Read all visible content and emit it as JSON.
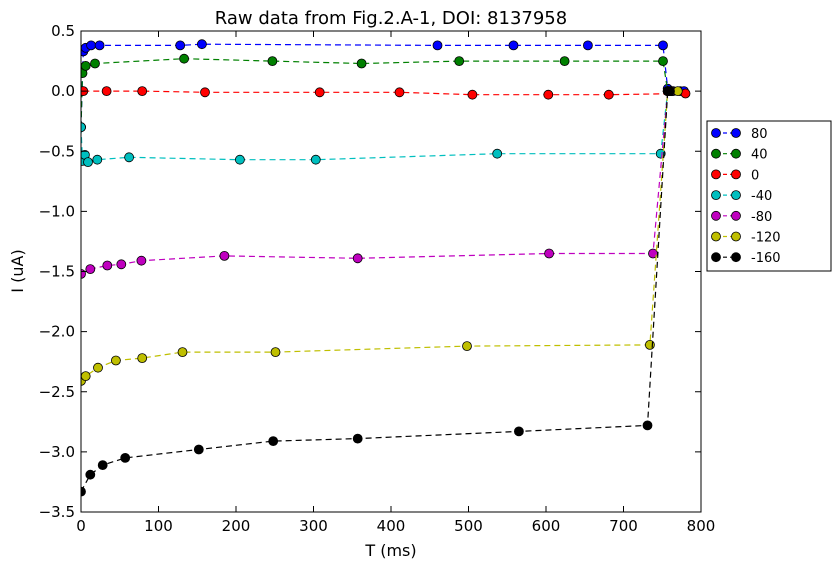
{
  "chart_data": {
    "type": "line",
    "title": "Raw data from Fig.2.A-1, DOI: 8137958",
    "xlabel": "T (ms)",
    "ylabel": "I (uA)",
    "xlim": [
      0,
      800
    ],
    "ylim": [
      -3.5,
      0.5
    ],
    "x_ticks": [
      0,
      100,
      200,
      300,
      400,
      500,
      600,
      700,
      800
    ],
    "y_ticks": [
      0.5,
      0.0,
      -0.5,
      -1.0,
      -1.5,
      -2.0,
      -2.5,
      -3.0,
      -3.5
    ],
    "x_tick_labels": [
      "0",
      "100",
      "200",
      "300",
      "400",
      "500",
      "600",
      "700",
      "800"
    ],
    "y_tick_labels": [
      "0.5",
      "0.0",
      "−0.5",
      "−1.0",
      "−1.5",
      "−2.0",
      "−2.5",
      "−3.0",
      "−3.5"
    ],
    "grid": false,
    "legend_placement": "outside-right",
    "line_style": "dashed",
    "series": [
      {
        "name": "80",
        "color": "#0000ff",
        "points": [
          [
            0,
            -0.3
          ],
          [
            3,
            0.33
          ],
          [
            6,
            0.36
          ],
          [
            13,
            0.38
          ],
          [
            24,
            0.38
          ],
          [
            128,
            0.38
          ],
          [
            156,
            0.39
          ],
          [
            460,
            0.38
          ],
          [
            558,
            0.38
          ],
          [
            654,
            0.38
          ],
          [
            751,
            0.38
          ],
          [
            757,
            0.02
          ],
          [
            761,
            0.0
          ],
          [
            773,
            0.0
          ],
          [
            778,
            0.0
          ]
        ]
      },
      {
        "name": "40",
        "color": "#008000",
        "points": [
          [
            0,
            -0.3
          ],
          [
            2,
            0.15
          ],
          [
            6,
            0.21
          ],
          [
            18,
            0.23
          ],
          [
            133,
            0.27
          ],
          [
            247,
            0.25
          ],
          [
            362,
            0.23
          ],
          [
            488,
            0.25
          ],
          [
            624,
            0.25
          ],
          [
            751,
            0.25
          ],
          [
            757,
            0.0
          ],
          [
            762,
            0.0
          ]
        ]
      },
      {
        "name": "0",
        "color": "#ff0000",
        "points": [
          [
            3,
            0.0
          ],
          [
            33,
            0.0
          ],
          [
            79,
            0.0
          ],
          [
            160,
            -0.01
          ],
          [
            308,
            -0.01
          ],
          [
            411,
            -0.01
          ],
          [
            505,
            -0.03
          ],
          [
            603,
            -0.03
          ],
          [
            681,
            -0.03
          ],
          [
            780,
            -0.02
          ]
        ]
      },
      {
        "name": "-40",
        "color": "#00bfbf",
        "points": [
          [
            0,
            -0.3
          ],
          [
            2,
            -0.58
          ],
          [
            5,
            -0.53
          ],
          [
            9,
            -0.59
          ],
          [
            21,
            -0.57
          ],
          [
            62,
            -0.55
          ],
          [
            205,
            -0.57
          ],
          [
            303,
            -0.57
          ],
          [
            537,
            -0.52
          ],
          [
            748,
            -0.52
          ],
          [
            757,
            0.0
          ],
          [
            764,
            0.0
          ]
        ]
      },
      {
        "name": "-80",
        "color": "#bf00bf",
        "points": [
          [
            0,
            -1.52
          ],
          [
            12,
            -1.48
          ],
          [
            34,
            -1.45
          ],
          [
            52,
            -1.44
          ],
          [
            78,
            -1.41
          ],
          [
            185,
            -1.37
          ],
          [
            357,
            -1.39
          ],
          [
            604,
            -1.35
          ],
          [
            738,
            -1.35
          ],
          [
            757,
            0.0
          ],
          [
            762,
            0.0
          ]
        ]
      },
      {
        "name": "-120",
        "color": "#bfbf00",
        "points": [
          [
            0,
            -2.41
          ],
          [
            6,
            -2.37
          ],
          [
            22,
            -2.3
          ],
          [
            45,
            -2.24
          ],
          [
            79,
            -2.22
          ],
          [
            131,
            -2.17
          ],
          [
            251,
            -2.17
          ],
          [
            498,
            -2.12
          ],
          [
            734,
            -2.11
          ],
          [
            757,
            0.0
          ],
          [
            770,
            0.0
          ]
        ]
      },
      {
        "name": "-160",
        "color": "#000000",
        "points": [
          [
            0,
            -3.33
          ],
          [
            12,
            -3.19
          ],
          [
            28,
            -3.11
          ],
          [
            57,
            -3.05
          ],
          [
            152,
            -2.98
          ],
          [
            248,
            -2.91
          ],
          [
            357,
            -2.89
          ],
          [
            565,
            -2.83
          ],
          [
            731,
            -2.78
          ],
          [
            757,
            0.0
          ],
          [
            760,
            0.0
          ]
        ]
      }
    ]
  }
}
